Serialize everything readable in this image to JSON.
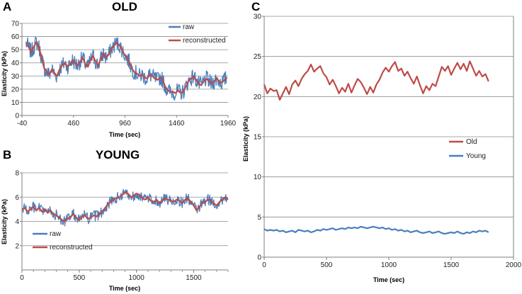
{
  "colors": {
    "raw": "#4a7ebb",
    "reconstructed": "#be4b48",
    "old": "#be4b48",
    "young": "#4a7ebb",
    "grid": "#8c8c8c",
    "axis": "#7f7f7f"
  },
  "chart_data": [
    {
      "id": "A",
      "panel_label": "A",
      "type": "line",
      "title": "OLD",
      "xlabel": "Time (sec)",
      "ylabel": "Elasticity (kPa)",
      "xlim": [
        -40,
        1960
      ],
      "ylim": [
        0,
        70
      ],
      "xticks": [
        -40,
        460,
        960,
        1460,
        1960
      ],
      "yticks": [
        0,
        10,
        20,
        30,
        40,
        50,
        60,
        70
      ],
      "legend": [
        "raw",
        "reconstructed"
      ],
      "series": [
        {
          "name": "reconstructed",
          "x": [
            0,
            25,
            50,
            75,
            100,
            125,
            150,
            175,
            200,
            225,
            250,
            275,
            300,
            325,
            350,
            375,
            400,
            425,
            450,
            475,
            500,
            525,
            550,
            575,
            600,
            625,
            650,
            675,
            700,
            725,
            750,
            775,
            800,
            825,
            850,
            875,
            900,
            925,
            950,
            975,
            1000,
            1025,
            1050,
            1075,
            1100,
            1125,
            1150,
            1175,
            1200,
            1225,
            1250,
            1275,
            1300,
            1325,
            1350,
            1375,
            1400,
            1425,
            1450,
            1475,
            1500,
            1525,
            1550,
            1575,
            1600,
            1625,
            1650,
            1675,
            1700,
            1725,
            1750,
            1775,
            1800,
            1825,
            1850,
            1875,
            1900,
            1925,
            1950
          ],
          "y": [
            55,
            52,
            48,
            52,
            56,
            52,
            44,
            36,
            33,
            31,
            35,
            32,
            30,
            35,
            38,
            40,
            37,
            39,
            42,
            40,
            38,
            41,
            44,
            39,
            37,
            42,
            45,
            41,
            38,
            43,
            47,
            44,
            46,
            50,
            53,
            55,
            54,
            51,
            47,
            44,
            41,
            36,
            33,
            32,
            30,
            31,
            29,
            28,
            31,
            30,
            28,
            27,
            29,
            27,
            22,
            19,
            18,
            18,
            17,
            19,
            17,
            18,
            22,
            26,
            28,
            30,
            27,
            24,
            23,
            26,
            28,
            26,
            24,
            26,
            28,
            26,
            25,
            27,
            29
          ]
        },
        {
          "name": "raw",
          "x": [
            0,
            25,
            50,
            75,
            100,
            125,
            150,
            175,
            200,
            225,
            250,
            275,
            300,
            325,
            350,
            375,
            400,
            425,
            450,
            475,
            500,
            525,
            550,
            575,
            600,
            625,
            650,
            675,
            700,
            725,
            750,
            775,
            800,
            825,
            850,
            875,
            900,
            925,
            950,
            975,
            1000,
            1025,
            1050,
            1075,
            1100,
            1125,
            1150,
            1175,
            1200,
            1225,
            1250,
            1275,
            1300,
            1325,
            1350,
            1375,
            1400,
            1425,
            1450,
            1475,
            1500,
            1525,
            1550,
            1575,
            1600,
            1625,
            1650,
            1675,
            1700,
            1725,
            1750,
            1775,
            1800,
            1825,
            1850,
            1875,
            1900,
            1925,
            1950
          ],
          "y": [
            55,
            52,
            48,
            52,
            56,
            52,
            44,
            36,
            33,
            31,
            35,
            32,
            30,
            35,
            38,
            40,
            37,
            39,
            42,
            40,
            38,
            41,
            44,
            39,
            37,
            42,
            45,
            41,
            38,
            43,
            47,
            44,
            46,
            50,
            53,
            55,
            54,
            51,
            47,
            44,
            41,
            36,
            33,
            32,
            30,
            31,
            29,
            28,
            31,
            30,
            28,
            27,
            29,
            27,
            22,
            19,
            18,
            18,
            17,
            19,
            17,
            18,
            22,
            26,
            28,
            30,
            27,
            24,
            23,
            26,
            28,
            26,
            24,
            26,
            28,
            26,
            25,
            27,
            29
          ],
          "noise": 6
        }
      ]
    },
    {
      "id": "B",
      "panel_label": "B",
      "type": "line",
      "title": "YOUNG",
      "xlabel": "Time (sec)",
      "ylabel": "Elasticity (kPa)",
      "xlim": [
        0,
        1800
      ],
      "ylim": [
        0,
        8
      ],
      "xticks": [
        0,
        500,
        1000,
        1500
      ],
      "yticks": [
        2,
        4,
        6,
        8
      ],
      "legend": [
        "raw",
        "reconstructed"
      ],
      "series": [
        {
          "name": "reconstructed",
          "x": [
            0,
            25,
            50,
            75,
            100,
            125,
            150,
            175,
            200,
            225,
            250,
            275,
            300,
            325,
            350,
            375,
            400,
            425,
            450,
            475,
            500,
            525,
            550,
            575,
            600,
            625,
            650,
            675,
            700,
            725,
            750,
            775,
            800,
            825,
            850,
            875,
            900,
            925,
            950,
            975,
            1000,
            1025,
            1050,
            1075,
            1100,
            1125,
            1150,
            1175,
            1200,
            1225,
            1250,
            1275,
            1300,
            1325,
            1350,
            1375,
            1400,
            1425,
            1450,
            1475,
            1500,
            1525,
            1550,
            1575,
            1600,
            1625,
            1650,
            1675,
            1700,
            1725,
            1750,
            1775,
            1800
          ],
          "y": [
            5.0,
            5.1,
            4.8,
            5.0,
            5.2,
            4.9,
            5.1,
            4.8,
            5.0,
            4.7,
            4.9,
            4.6,
            4.5,
            4.3,
            4.1,
            4.0,
            4.2,
            4.4,
            4.6,
            4.3,
            4.1,
            4.4,
            4.5,
            4.2,
            4.3,
            4.5,
            4.4,
            4.6,
            4.8,
            5.1,
            5.4,
            5.6,
            5.8,
            5.9,
            6.0,
            6.2,
            6.4,
            6.3,
            6.0,
            6.1,
            6.3,
            6.2,
            5.9,
            5.8,
            6.0,
            5.7,
            5.6,
            5.8,
            5.5,
            5.7,
            5.9,
            5.8,
            5.7,
            5.6,
            5.8,
            5.7,
            5.5,
            5.8,
            5.9,
            5.6,
            5.3,
            4.9,
            5.2,
            5.5,
            5.6,
            5.8,
            5.7,
            5.5,
            5.3,
            5.6,
            5.8,
            6.0,
            5.8
          ]
        },
        {
          "name": "raw",
          "x": [
            0,
            25,
            50,
            75,
            100,
            125,
            150,
            175,
            200,
            225,
            250,
            275,
            300,
            325,
            350,
            375,
            400,
            425,
            450,
            475,
            500,
            525,
            550,
            575,
            600,
            625,
            650,
            675,
            700,
            725,
            750,
            775,
            800,
            825,
            850,
            875,
            900,
            925,
            950,
            975,
            1000,
            1025,
            1050,
            1075,
            1100,
            1125,
            1150,
            1175,
            1200,
            1225,
            1250,
            1275,
            1300,
            1325,
            1350,
            1375,
            1400,
            1425,
            1450,
            1475,
            1500,
            1525,
            1550,
            1575,
            1600,
            1625,
            1650,
            1675,
            1700,
            1725,
            1750,
            1775,
            1800
          ],
          "y": [
            5.0,
            5.1,
            4.8,
            5.0,
            5.2,
            4.9,
            5.1,
            4.8,
            5.0,
            4.7,
            4.9,
            4.6,
            4.5,
            4.3,
            4.1,
            4.0,
            4.2,
            4.4,
            4.6,
            4.3,
            4.1,
            4.4,
            4.5,
            4.2,
            4.3,
            4.5,
            4.4,
            4.6,
            4.8,
            5.1,
            5.4,
            5.6,
            5.8,
            5.9,
            6.0,
            6.2,
            6.4,
            6.3,
            6.0,
            6.1,
            6.3,
            6.2,
            5.9,
            5.8,
            6.0,
            5.7,
            5.6,
            5.8,
            5.5,
            5.7,
            5.9,
            5.8,
            5.7,
            5.6,
            5.8,
            5.7,
            5.5,
            5.8,
            5.9,
            5.6,
            5.3,
            4.9,
            5.2,
            5.5,
            5.6,
            5.8,
            5.7,
            5.5,
            5.3,
            5.6,
            5.8,
            6.0,
            5.8
          ],
          "noise": 0.45
        }
      ]
    },
    {
      "id": "C",
      "panel_label": "C",
      "type": "line",
      "title": "",
      "xlabel": "Time (sec)",
      "ylabel": "Elasticity (kPa)",
      "xlim": [
        0,
        2000
      ],
      "ylim": [
        0,
        30
      ],
      "xticks": [
        0,
        500,
        1000,
        1500,
        2000
      ],
      "yticks": [
        0,
        5,
        10,
        15,
        20,
        25,
        30
      ],
      "legend": [
        "Old",
        "Young"
      ],
      "series": [
        {
          "name": "Old",
          "x": [
            0,
            25,
            50,
            75,
            100,
            125,
            150,
            175,
            200,
            225,
            250,
            275,
            300,
            325,
            350,
            375,
            400,
            425,
            450,
            475,
            500,
            525,
            550,
            575,
            600,
            625,
            650,
            675,
            700,
            725,
            750,
            775,
            800,
            825,
            850,
            875,
            900,
            925,
            950,
            975,
            1000,
            1025,
            1050,
            1075,
            1100,
            1125,
            1150,
            1175,
            1200,
            1225,
            1250,
            1275,
            1300,
            1325,
            1350,
            1375,
            1400,
            1425,
            1450,
            1475,
            1500,
            1525,
            1550,
            1575,
            1600,
            1625,
            1650,
            1675,
            1700,
            1725,
            1750,
            1775,
            1800
          ],
          "y": [
            21.5,
            20.4,
            21.0,
            20.7,
            20.8,
            19.6,
            20.4,
            21.2,
            20.3,
            21.5,
            22.0,
            21.3,
            22.2,
            22.8,
            23.2,
            24.0,
            23.1,
            23.5,
            23.8,
            22.9,
            22.4,
            21.5,
            22.1,
            21.3,
            20.4,
            21.1,
            20.6,
            21.6,
            20.5,
            21.4,
            22.2,
            21.8,
            21.1,
            20.3,
            21.2,
            20.5,
            21.5,
            22.1,
            23.0,
            23.6,
            23.1,
            23.8,
            24.3,
            23.2,
            23.5,
            22.6,
            23.1,
            22.3,
            21.6,
            22.5,
            21.4,
            20.4,
            21.3,
            20.8,
            21.6,
            21.3,
            22.5,
            23.7,
            23.2,
            23.8,
            22.7,
            23.5,
            24.2,
            23.4,
            24.1,
            23.2,
            24.4,
            23.5,
            22.6,
            23.2,
            22.5,
            22.8,
            21.9
          ]
        },
        {
          "name": "Young",
          "x": [
            0,
            25,
            50,
            75,
            100,
            125,
            150,
            175,
            200,
            225,
            250,
            275,
            300,
            325,
            350,
            375,
            400,
            425,
            450,
            475,
            500,
            525,
            550,
            575,
            600,
            625,
            650,
            675,
            700,
            725,
            750,
            775,
            800,
            825,
            850,
            875,
            900,
            925,
            950,
            975,
            1000,
            1025,
            1050,
            1075,
            1100,
            1125,
            1150,
            1175,
            1200,
            1225,
            1250,
            1275,
            1300,
            1325,
            1350,
            1375,
            1400,
            1425,
            1450,
            1475,
            1500,
            1525,
            1550,
            1575,
            1600,
            1625,
            1650,
            1675,
            1700,
            1725,
            1750,
            1775,
            1800
          ],
          "y": [
            3.5,
            3.3,
            3.4,
            3.3,
            3.4,
            3.2,
            3.3,
            3.1,
            3.2,
            3.3,
            3.1,
            3.4,
            3.3,
            3.2,
            3.3,
            3.1,
            3.2,
            3.4,
            3.3,
            3.5,
            3.4,
            3.5,
            3.6,
            3.4,
            3.5,
            3.6,
            3.5,
            3.7,
            3.6,
            3.7,
            3.6,
            3.8,
            3.7,
            3.6,
            3.7,
            3.8,
            3.7,
            3.6,
            3.7,
            3.5,
            3.6,
            3.4,
            3.5,
            3.3,
            3.4,
            3.2,
            3.3,
            3.1,
            3.2,
            3.3,
            3.1,
            3.0,
            3.1,
            3.2,
            3.0,
            3.1,
            3.2,
            3.0,
            2.9,
            3.0,
            3.1,
            3.0,
            3.2,
            3.0,
            2.9,
            3.1,
            3.0,
            3.2,
            3.1,
            3.3,
            3.2,
            3.3,
            3.1
          ]
        }
      ]
    }
  ]
}
